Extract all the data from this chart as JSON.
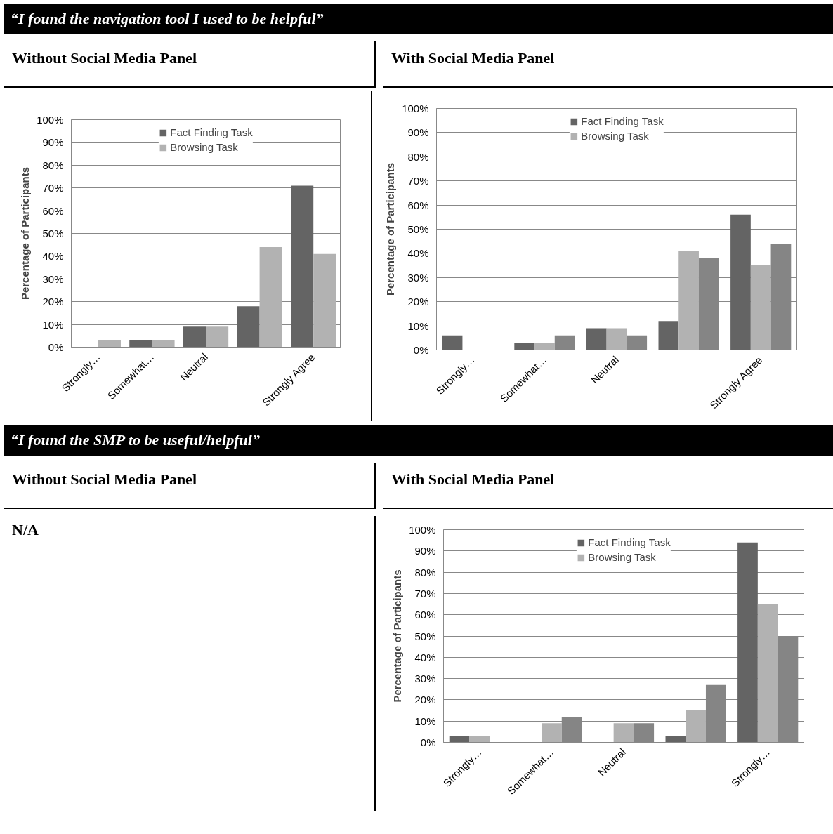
{
  "chart_data": [
    {
      "type": "bar",
      "title": "“I found the navigation tool I used to be helpful”",
      "subtitle": "Without Social Media Panel",
      "ylabel": "Percentage of Participants",
      "categories": [
        "Strongly…",
        "Somewhat…",
        "Neutral",
        null,
        "Strongly Agree"
      ],
      "series": [
        {
          "name": "Fact Finding Task",
          "color": "#646464",
          "values": [
            0,
            3,
            9,
            18,
            71
          ]
        },
        {
          "name": "Browsing Task",
          "color": "#b2b2b2",
          "values": [
            3,
            3,
            9,
            44,
            41
          ]
        }
      ],
      "ylim": [
        0,
        100
      ],
      "yticks": [
        {
          "value": 0,
          "label": "0%"
        },
        {
          "value": 10,
          "label": "10%"
        },
        {
          "value": 20,
          "label": "20%"
        },
        {
          "value": 30,
          "label": "30%"
        },
        {
          "value": 40,
          "label": "40%"
        },
        {
          "value": 50,
          "label": "50%"
        },
        {
          "value": 60,
          "label": "60%"
        },
        {
          "value": 70,
          "label": "70%"
        },
        {
          "value": 80,
          "label": "80%"
        },
        {
          "value": 90,
          "label": "90%"
        },
        {
          "value": 100,
          "label": "100%"
        }
      ],
      "grid": "y",
      "legend": "top"
    },
    {
      "type": "bar",
      "subtitle": "With Social Media Panel",
      "ylabel": "Percentage of Participants",
      "categories": [
        "Strongly…",
        "Somewhat…",
        "Neutral",
        null,
        "Strongly Agree"
      ],
      "series": [
        {
          "name": "Fact Finding Task",
          "color": "#646464",
          "values": [
            6,
            3,
            9,
            12,
            56
          ]
        },
        {
          "name": "Browsing Task",
          "color": "#b2b2b2",
          "values": [
            0,
            3,
            9,
            41,
            35
          ]
        },
        {
          "color": "#858585",
          "values": [
            0,
            6,
            6,
            38,
            44
          ]
        }
      ],
      "ylim": [
        0,
        100
      ],
      "yticks": [
        {
          "value": 0,
          "label": "0%"
        },
        {
          "value": 10,
          "label": "10%"
        },
        {
          "value": 20,
          "label": "20%"
        },
        {
          "value": 30,
          "label": "30%"
        },
        {
          "value": 40,
          "label": "40%"
        },
        {
          "value": 50,
          "label": "50%"
        },
        {
          "value": 60,
          "label": "60%"
        },
        {
          "value": 70,
          "label": "70%"
        },
        {
          "value": 80,
          "label": "80%"
        },
        {
          "value": 90,
          "label": "90%"
        },
        {
          "value": 100,
          "label": "100%"
        }
      ],
      "grid": "y",
      "legend": "top"
    },
    {
      "type": "other",
      "title": "“I found the SMP to be useful/helpful”",
      "annotations": [
        "Without Social Media Panel",
        "N/A"
      ]
    },
    {
      "type": "bar",
      "subtitle": "With Social Media Panel",
      "ylabel": "Percentage of Participants",
      "categories": [
        "Strongly…",
        "Somewhat…",
        "Neutral",
        null,
        "Strongly…"
      ],
      "series": [
        {
          "name": "Fact Finding Task",
          "color": "#646464",
          "values": [
            3,
            0,
            0,
            3,
            94
          ]
        },
        {
          "name": "Browsing Task",
          "color": "#b2b2b2",
          "values": [
            3,
            9,
            9,
            15,
            65
          ]
        },
        {
          "color": "#858585",
          "values": [
            0,
            12,
            9,
            27,
            50
          ]
        }
      ],
      "ylim": [
        0,
        100
      ],
      "yticks": [
        {
          "value": 0,
          "label": "0%"
        },
        {
          "value": 10,
          "label": "10%"
        },
        {
          "value": 20,
          "label": "20%"
        },
        {
          "value": 30,
          "label": "30%"
        },
        {
          "value": 40,
          "label": "40%"
        },
        {
          "value": 50,
          "label": "50%"
        },
        {
          "value": 60,
          "label": "60%"
        },
        {
          "value": 70,
          "label": "70%"
        },
        {
          "value": 80,
          "label": "80%"
        },
        {
          "value": 90,
          "label": "90%"
        },
        {
          "value": 100,
          "label": "100%"
        }
      ],
      "grid": "y",
      "legend": "top"
    }
  ]
}
